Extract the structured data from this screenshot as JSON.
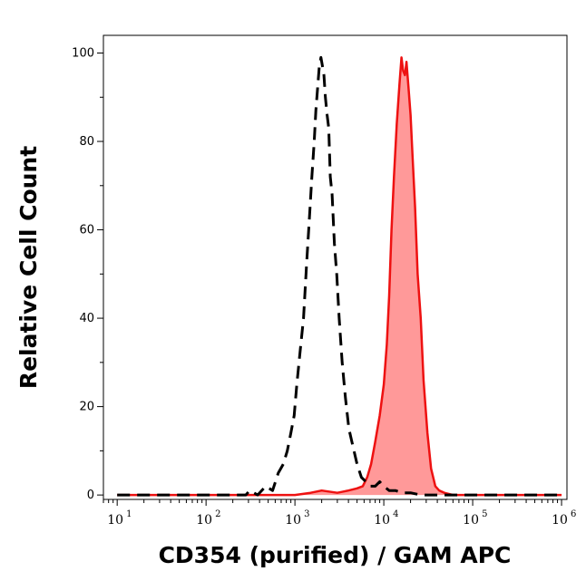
{
  "chart_data": {
    "type": "area",
    "xlabel": "CD354 (purified) / GAM APC",
    "ylabel": "Relative Cell Count",
    "x_scale": "log",
    "xlim": [
      7,
      1150000
    ],
    "ylim": [
      -1,
      104
    ],
    "x_ticks": [
      {
        "base": "10",
        "exp": "1",
        "value": 10
      },
      {
        "base": "10",
        "exp": "2",
        "value": 100
      },
      {
        "base": "10",
        "exp": "3",
        "value": 1000
      },
      {
        "base": "10",
        "exp": "4",
        "value": 10000
      },
      {
        "base": "10",
        "exp": "5",
        "value": 100000
      },
      {
        "base": "10",
        "exp": "6",
        "value": 1000000
      }
    ],
    "y_ticks": [
      0,
      20,
      40,
      60,
      80,
      100
    ],
    "grid": false,
    "series": [
      {
        "style": "dashed-outline",
        "color": "#000000",
        "x": [
          10,
          280,
          310,
          380,
          470,
          560,
          650,
          740,
          820,
          900,
          980,
          1050,
          1150,
          1250,
          1350,
          1450,
          1550,
          1650,
          1720,
          1800,
          1880,
          1960,
          2040,
          2120,
          2200,
          2300,
          2400,
          2500,
          2620,
          2780,
          2950,
          3150,
          3400,
          3700,
          4050,
          4500,
          5000,
          5600,
          6300,
          7000,
          8000,
          9000,
          10000,
          11500,
          13500,
          16000,
          20000,
          26000,
          1000000
        ],
        "y": [
          0,
          0,
          1,
          0,
          2,
          1,
          5,
          7,
          10,
          14,
          18,
          25,
          33,
          40,
          52,
          62,
          72,
          80,
          87,
          92,
          97,
          99,
          97,
          95,
          90,
          86,
          83,
          72,
          68,
          57,
          50,
          40,
          30,
          22,
          15,
          11,
          7,
          4,
          3,
          2,
          2,
          3,
          2,
          1,
          1,
          0.5,
          0.5,
          0,
          0
        ]
      },
      {
        "style": "filled",
        "color": "#ee1111",
        "fill": "#ff9999",
        "x": [
          10,
          1000,
          1500,
          2000,
          3000,
          4000,
          5000,
          5800,
          6500,
          7200,
          8000,
          9000,
          10000,
          10800,
          11500,
          12200,
          13000,
          14000,
          15000,
          15800,
          16500,
          17300,
          18000,
          19000,
          20000,
          21000,
          22500,
          24000,
          26000,
          28000,
          31000,
          34000,
          38000,
          42000,
          48000,
          60000,
          1000000
        ],
        "y": [
          0,
          0,
          0.5,
          1,
          0.5,
          1,
          1.5,
          2,
          4,
          7,
          12,
          18,
          25,
          34,
          45,
          60,
          72,
          84,
          93,
          99,
          96,
          95,
          98,
          92,
          86,
          77,
          65,
          50,
          40,
          26,
          14,
          6,
          2,
          1,
          0.5,
          0,
          0
        ]
      }
    ]
  }
}
